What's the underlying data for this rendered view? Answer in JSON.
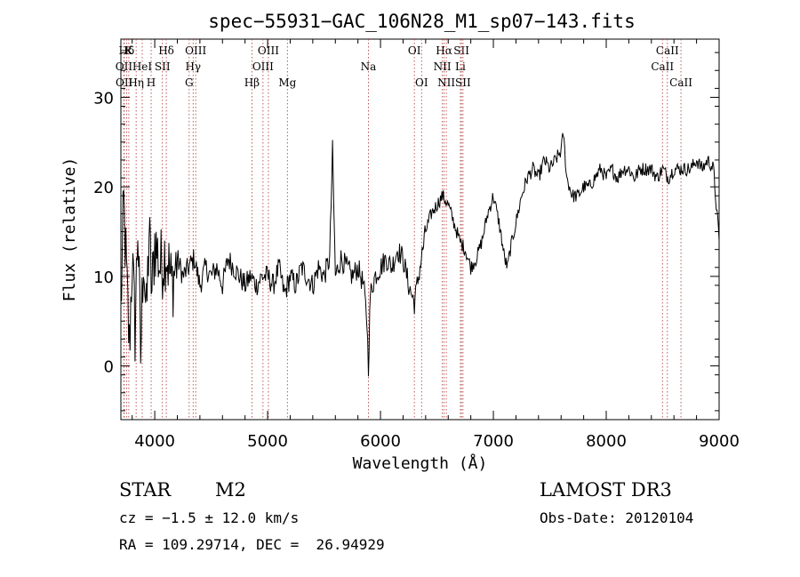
{
  "chart_data": {
    "type": "line",
    "title": "spec−55931−GAC_106N28_M1_sp07−143.fits",
    "xlabel": "Wavelength (Å)",
    "ylabel": "Flux (relative)",
    "xlim": [
      3700,
      9000
    ],
    "ylim": [
      -6,
      36.5
    ],
    "x_ticks": [
      4000,
      5000,
      6000,
      7000,
      8000,
      9000
    ],
    "y_ticks": [
      0,
      10,
      20,
      30
    ],
    "grid": false,
    "line_color": "#000000",
    "marker_color": "#b03030",
    "line_markers": [
      {
        "label": "Hδ",
        "wave": 3750,
        "row": 0
      },
      {
        "label": "K",
        "wave": 3770,
        "row": 0
      },
      {
        "label": "OII",
        "wave": 3727,
        "row": 1
      },
      {
        "label": "HeI",
        "wave": 3889,
        "row": 1
      },
      {
        "label": "OII",
        "wave": 3729,
        "row": 2
      },
      {
        "label": "Hη",
        "wave": 3835,
        "row": 2
      },
      {
        "label": "H",
        "wave": 3968,
        "row": 2
      },
      {
        "label": "Hδ",
        "wave": 4102,
        "row": 0
      },
      {
        "label": "SII",
        "wave": 4068,
        "row": 1
      },
      {
        "label": "OIII",
        "wave": 4363,
        "row": 0
      },
      {
        "label": "Hγ",
        "wave": 4340,
        "row": 1
      },
      {
        "label": "G",
        "wave": 4305,
        "row": 2
      },
      {
        "label": "OIII",
        "wave": 5007,
        "row": 0
      },
      {
        "label": "OIII",
        "wave": 4959,
        "row": 1
      },
      {
        "label": "Hβ",
        "wave": 4861,
        "row": 2
      },
      {
        "label": "Mg",
        "wave": 5175,
        "row": 2
      },
      {
        "label": "Na",
        "wave": 5893,
        "row": 1
      },
      {
        "label": "OI",
        "wave": 6300,
        "row": 0
      },
      {
        "label": "OI",
        "wave": 6364,
        "row": 2
      },
      {
        "label": "Hα",
        "wave": 6563,
        "row": 0
      },
      {
        "label": "SII",
        "wave": 6717,
        "row": 0
      },
      {
        "label": "NII",
        "wave": 6548,
        "row": 1
      },
      {
        "label": "Li",
        "wave": 6708,
        "row": 1
      },
      {
        "label": "NII",
        "wave": 6583,
        "row": 2
      },
      {
        "label": "SII",
        "wave": 6731,
        "row": 2
      },
      {
        "label": "CaII",
        "wave": 8542,
        "row": 0
      },
      {
        "label": "CaII",
        "wave": 8498,
        "row": 1
      },
      {
        "label": "CaII",
        "wave": 8662,
        "row": 2
      }
    ],
    "series": [
      {
        "name": "spectrum",
        "x": [
          3700,
          3725,
          3750,
          3775,
          3800,
          3825,
          3850,
          3875,
          3900,
          3925,
          3950,
          3975,
          4000,
          4050,
          4100,
          4150,
          4200,
          4250,
          4300,
          4350,
          4400,
          4450,
          4500,
          4550,
          4600,
          4650,
          4700,
          4750,
          4800,
          4850,
          4900,
          4950,
          5000,
          5050,
          5100,
          5150,
          5200,
          5250,
          5300,
          5350,
          5400,
          5450,
          5500,
          5550,
          5575,
          5600,
          5625,
          5650,
          5700,
          5750,
          5800,
          5850,
          5880,
          5893,
          5910,
          5950,
          6000,
          6050,
          6100,
          6150,
          6200,
          6250,
          6300,
          6350,
          6400,
          6450,
          6500,
          6550,
          6600,
          6650,
          6700,
          6750,
          6800,
          6850,
          6900,
          6950,
          7000,
          7050,
          7100,
          7125,
          7150,
          7200,
          7250,
          7300,
          7350,
          7400,
          7450,
          7500,
          7550,
          7600,
          7620,
          7650,
          7700,
          7750,
          7800,
          7850,
          7900,
          7950,
          8000,
          8050,
          8100,
          8150,
          8200,
          8250,
          8300,
          8350,
          8400,
          8450,
          8500,
          8550,
          8600,
          8650,
          8700,
          8750,
          8800,
          8850,
          8900,
          8950,
          9000
        ],
        "values": [
          6,
          18,
          10,
          2,
          12,
          4,
          16,
          1,
          13,
          5,
          15,
          8,
          14,
          11,
          13,
          9,
          12,
          10,
          11,
          12,
          9,
          11,
          10,
          11,
          9,
          12,
          11,
          10,
          9,
          10,
          9,
          10,
          10,
          9,
          11,
          8,
          10,
          9,
          11,
          10,
          9,
          11,
          10,
          12,
          24,
          10,
          11,
          12,
          11,
          10,
          11,
          9,
          5,
          0,
          8,
          10,
          11,
          12,
          11,
          13,
          12,
          9,
          7,
          11,
          15,
          17,
          18,
          19,
          18,
          16,
          14,
          13,
          11,
          12,
          14,
          17,
          19,
          16,
          12,
          11,
          13,
          16,
          19,
          21,
          22,
          21,
          23,
          22,
          23,
          24,
          26,
          21,
          19,
          19,
          20,
          20,
          21,
          22,
          21,
          22,
          21,
          22,
          22,
          21,
          22,
          22,
          22,
          21,
          22,
          21,
          22,
          22,
          22,
          22,
          23,
          22,
          23,
          22,
          14
        ]
      }
    ]
  },
  "info": {
    "object_class": "STAR",
    "subclass": "M2",
    "survey": "LAMOST DR3",
    "redshift": "cz = −1.5 ± 12.0 km/s",
    "obs_date": "Obs-Date: 20120104",
    "coords": "RA = 109.29714, DEC =  26.94929"
  }
}
